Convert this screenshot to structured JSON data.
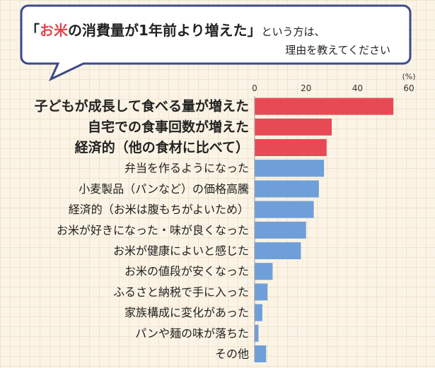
{
  "question": {
    "open_bracket": "「",
    "highlight": "お米",
    "main": "の消費量が1年前より増えた",
    "close_bracket": "」",
    "suffix": "という方は、",
    "line2": "理由を教えてください"
  },
  "colors": {
    "highlight_text": "#e0464c",
    "bar_top": "#e84a55",
    "bar_other": "#6f9fd8",
    "bubble_border": "#3b4a8a",
    "text": "#222222"
  },
  "chart_data": {
    "type": "bar",
    "orientation": "horizontal",
    "unit": "(%)",
    "xlim": [
      0,
      60
    ],
    "ticks": [
      0,
      20,
      40,
      60
    ],
    "categories": [
      "子どもが成長して食べる量が増えた",
      "自宅での食事回数が増えた",
      "経済的（他の食材に比べて）",
      "弁当を作るようになった",
      "小麦製品（パンなど）の価格高騰",
      "経済的（お米は腹もちがよいため）",
      "お米が好きになった・味が良くなった",
      "お米が健康によいと感じた",
      "お米の値段が安くなった",
      "ふるさと納税で手に入った",
      "家族構成に変化があった",
      "パンや麺の味が落ちた",
      "その他"
    ],
    "values": [
      54,
      30,
      28,
      27,
      25,
      23,
      20,
      18,
      7,
      5,
      3,
      1.5,
      4.5
    ],
    "highlighted_count": 3,
    "grid": false
  }
}
